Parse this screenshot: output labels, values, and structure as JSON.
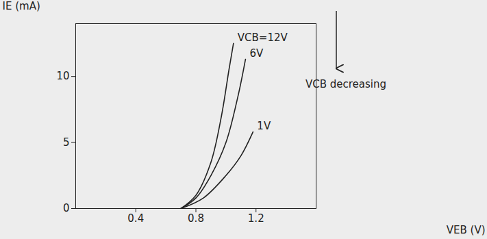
{
  "chart_data": {
    "type": "line",
    "x_label": "VEB (V)",
    "y_label": "IE (mA)",
    "xlim": [
      0,
      1.6
    ],
    "xticks": [
      0.4,
      0.8,
      1.2
    ],
    "ylim": [
      0,
      14
    ],
    "yticks": [
      0,
      5,
      10
    ],
    "grid": false,
    "color": "#222222",
    "annotations": [
      "VCB decreasing"
    ],
    "series": [
      {
        "name": "VCB=12V",
        "x": [
          0.7,
          0.8,
          0.9,
          0.97,
          1.02,
          1.05
        ],
        "values": [
          0,
          1,
          3.5,
          7,
          10.5,
          12.5
        ]
      },
      {
        "name": "6V",
        "x": [
          0.7,
          0.8,
          0.9,
          1.0,
          1.08,
          1.13
        ],
        "values": [
          0,
          0.8,
          2.5,
          5,
          8.5,
          11.3
        ]
      },
      {
        "name": "1V",
        "x": [
          0.7,
          0.85,
          1.0,
          1.1,
          1.18
        ],
        "values": [
          0,
          0.8,
          2.5,
          4,
          5.8
        ]
      }
    ]
  }
}
